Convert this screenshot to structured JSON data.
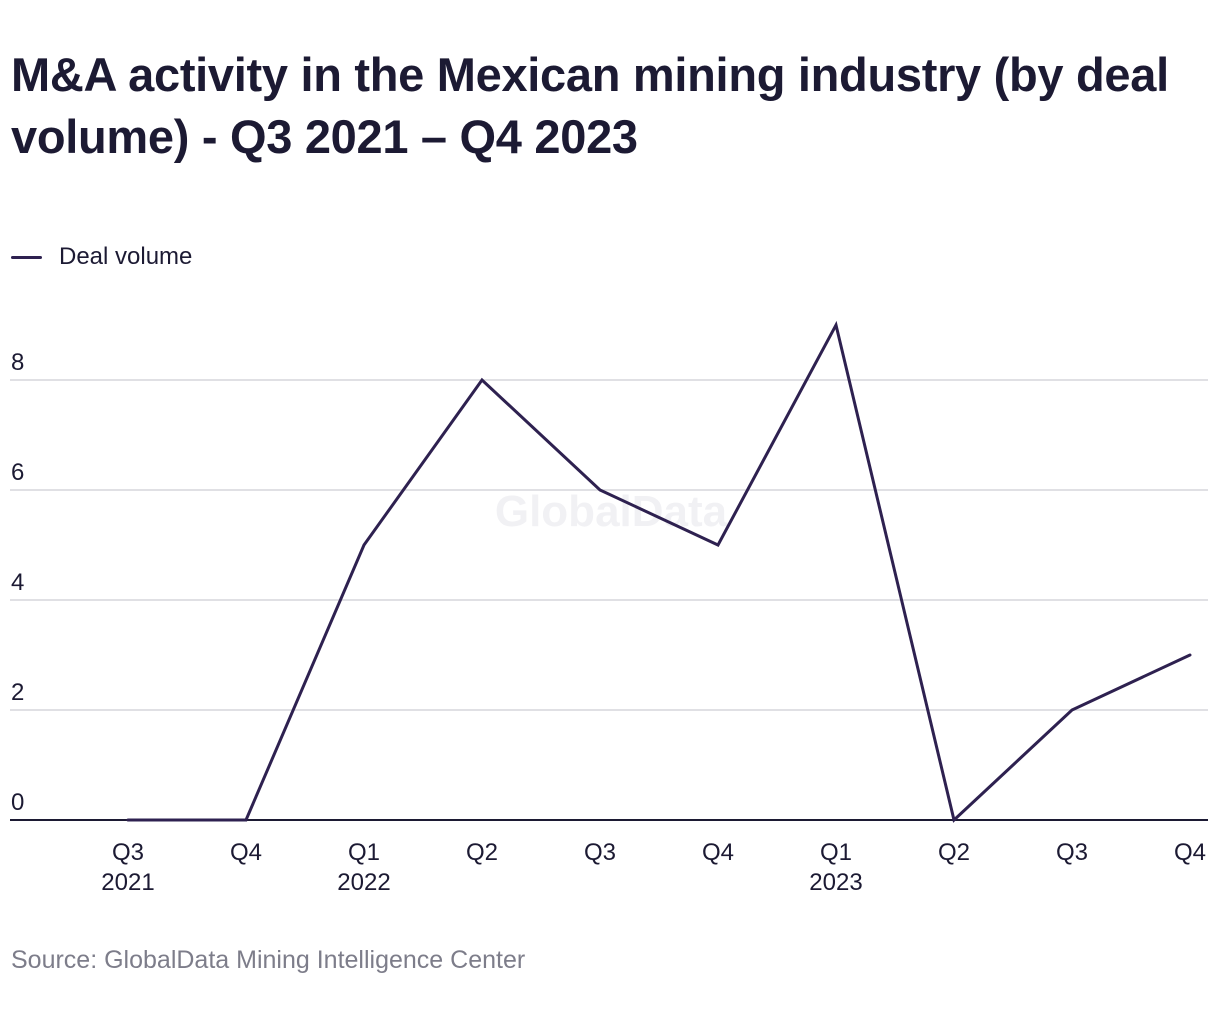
{
  "header": {
    "title": "M&A activity in the Mexican mining industry (by deal volume) - Q3 2021 – Q4 2023"
  },
  "legend": {
    "label": "Deal volume",
    "color": "#2e2150"
  },
  "watermark": "GlobalData",
  "source": "Source: GlobalData Mining Intelligence Center",
  "chart_data": {
    "type": "line",
    "title": "M&A activity in the Mexican mining industry (by deal volume) - Q3 2021 – Q4 2023",
    "xlabel": "",
    "ylabel": "",
    "categories": [
      "Q3 2021",
      "Q4 2021",
      "Q1 2022",
      "Q2 2022",
      "Q3 2022",
      "Q4 2022",
      "Q1 2023",
      "Q2 2023",
      "Q3 2023",
      "Q4 2023"
    ],
    "x_tick_labels": [
      {
        "top": "Q3",
        "bottom": "2021"
      },
      {
        "top": "Q4",
        "bottom": ""
      },
      {
        "top": "Q1",
        "bottom": "2022"
      },
      {
        "top": "Q2",
        "bottom": ""
      },
      {
        "top": "Q3",
        "bottom": ""
      },
      {
        "top": "Q4",
        "bottom": ""
      },
      {
        "top": "Q1",
        "bottom": "2023"
      },
      {
        "top": "Q2",
        "bottom": ""
      },
      {
        "top": "Q3",
        "bottom": ""
      },
      {
        "top": "Q4",
        "bottom": ""
      }
    ],
    "series": [
      {
        "name": "Deal volume",
        "values": [
          0,
          0,
          5,
          8,
          6,
          5,
          9,
          0,
          2,
          3
        ],
        "color": "#2e2150"
      }
    ],
    "ylim": [
      0,
      9
    ],
    "y_ticks": [
      0,
      2,
      4,
      6,
      8
    ],
    "grid": true,
    "legend_position": "top-left"
  }
}
